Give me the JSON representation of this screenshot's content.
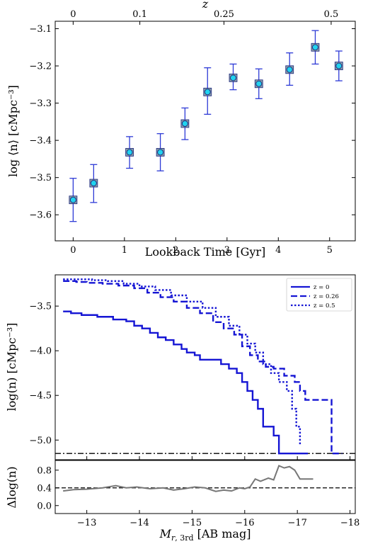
{
  "chart_data": [
    {
      "type": "scatter",
      "xlabel": "Lookback Time [Gyr]",
      "ylabel": "log ⟨n⟩ [cMpc⁻³]",
      "x2label": "z",
      "xlim": [
        -0.35,
        5.5
      ],
      "ylim": [
        -3.67,
        -3.08
      ],
      "xticks": [
        0,
        1,
        2,
        3,
        4,
        5
      ],
      "yticks": [
        -3.6,
        -3.5,
        -3.4,
        -3.3,
        -3.2,
        -3.1
      ],
      "ytick_labels": [
        "−3.6",
        "−3.5",
        "−3.4",
        "−3.3",
        "−3.2",
        "−3.1"
      ],
      "top_ticks": [
        {
          "label": "0",
          "lookback": 0.0
        },
        {
          "label": "0.1",
          "lookback": 1.3
        },
        {
          "label": "0.25",
          "lookback": 2.94
        },
        {
          "label": "0.5",
          "lookback": 5.03
        }
      ],
      "x": [
        0.0,
        0.4,
        1.1,
        1.7,
        2.18,
        2.62,
        3.12,
        3.62,
        4.22,
        4.72,
        5.18
      ],
      "y": [
        -3.56,
        -3.515,
        -3.432,
        -3.432,
        -3.355,
        -3.27,
        -3.232,
        -3.248,
        -3.21,
        -3.15,
        -3.2
      ],
      "yerr_low": [
        0.058,
        0.052,
        0.043,
        0.05,
        0.043,
        0.06,
        0.032,
        0.04,
        0.042,
        0.045,
        0.04
      ],
      "yerr_high": [
        0.058,
        0.05,
        0.042,
        0.05,
        0.042,
        0.065,
        0.037,
        0.04,
        0.045,
        0.045,
        0.04
      ],
      "grid": false,
      "colors": {
        "marker_fill": "#22d3ee",
        "marker_edge": "#1a237e",
        "errorbar": "#2d3ad6",
        "square": "#8aa0a8"
      }
    },
    {
      "type": "line",
      "xlabel": "",
      "ylabel": "log(n) [cMpc⁻³]",
      "xlim": [
        -12.4,
        -18.1
      ],
      "ylim": [
        -5.22,
        -3.15
      ],
      "yticks": [
        -5.0,
        -4.5,
        -4.0,
        -3.5
      ],
      "ytick_labels": [
        "−5.0",
        "−4.5",
        "−4.0",
        "−3.5"
      ],
      "hline": -5.15,
      "legend_placement": "top-right",
      "series": [
        {
          "name": "z = 0",
          "style": "solid",
          "x": [
            -12.55,
            -12.7,
            -12.9,
            -13.2,
            -13.5,
            -13.75,
            -13.9,
            -14.05,
            -14.2,
            -14.35,
            -14.5,
            -14.65,
            -14.8,
            -14.9,
            -15.05,
            -15.15,
            -15.3,
            -15.45,
            -15.55,
            -15.7,
            -15.85,
            -15.95,
            -16.05,
            -16.15,
            -16.25,
            -16.35,
            -16.45,
            -16.55,
            -16.65,
            -16.8,
            -17.1,
            -17.2
          ],
          "y": [
            -3.56,
            -3.58,
            -3.6,
            -3.62,
            -3.65,
            -3.67,
            -3.72,
            -3.75,
            -3.8,
            -3.85,
            -3.88,
            -3.93,
            -3.98,
            -4.02,
            -4.05,
            -4.1,
            -4.1,
            -4.1,
            -4.15,
            -4.2,
            -4.25,
            -4.35,
            -4.45,
            -4.55,
            -4.65,
            -4.85,
            -4.85,
            -4.95,
            -5.15,
            -5.15,
            -5.15,
            -5.15
          ]
        },
        {
          "name": "z = 0.26",
          "style": "dashed",
          "x": [
            -12.55,
            -12.8,
            -13.0,
            -13.3,
            -13.6,
            -13.9,
            -14.15,
            -14.4,
            -14.65,
            -14.9,
            -15.15,
            -15.4,
            -15.6,
            -15.8,
            -15.95,
            -16.1,
            -16.25,
            -16.4,
            -16.55,
            -16.75,
            -16.95,
            -17.05,
            -17.15,
            -17.3,
            -17.45,
            -17.55,
            -17.65,
            -17.85
          ],
          "y": [
            -3.22,
            -3.23,
            -3.24,
            -3.25,
            -3.27,
            -3.3,
            -3.35,
            -3.4,
            -3.45,
            -3.52,
            -3.58,
            -3.68,
            -3.75,
            -3.82,
            -3.95,
            -4.05,
            -4.12,
            -4.18,
            -4.2,
            -4.28,
            -4.35,
            -4.45,
            -4.55,
            -4.55,
            -4.55,
            -4.55,
            -5.15,
            -5.15
          ]
        },
        {
          "name": "z = 0.5",
          "style": "dotted",
          "x": [
            -12.55,
            -12.8,
            -13.1,
            -13.4,
            -13.7,
            -14.0,
            -14.3,
            -14.6,
            -14.9,
            -15.2,
            -15.45,
            -15.7,
            -15.9,
            -16.05,
            -16.2,
            -16.35,
            -16.5,
            -16.65,
            -16.8,
            -16.9,
            -16.98,
            -17.05
          ],
          "y": [
            -3.2,
            -3.2,
            -3.21,
            -3.22,
            -3.25,
            -3.28,
            -3.32,
            -3.38,
            -3.45,
            -3.52,
            -3.62,
            -3.72,
            -3.82,
            -3.92,
            -4.02,
            -4.15,
            -4.25,
            -4.35,
            -4.45,
            -4.65,
            -4.85,
            -5.05
          ]
        }
      ],
      "colors": {
        "lines": "#1515d4",
        "hline": "#000000"
      }
    },
    {
      "type": "line",
      "xlabel": "M_r,3rd [AB mag]",
      "ylabel": "Δlog(n)",
      "xlim": [
        -12.4,
        -18.1
      ],
      "ylim": [
        -0.18,
        1.02
      ],
      "xticks": [
        -13,
        -14,
        -15,
        -16,
        -17,
        -18
      ],
      "xtick_labels": [
        "−13",
        "−14",
        "−15",
        "−16",
        "−17",
        "−18"
      ],
      "yticks": [
        0.0,
        0.4,
        0.8
      ],
      "ytick_labels": [
        "0.0",
        "0.4",
        "0.8"
      ],
      "hline": 0.4,
      "series": [
        {
          "x": [
            -12.55,
            -12.75,
            -13.0,
            -13.3,
            -13.55,
            -13.75,
            -13.95,
            -14.2,
            -14.45,
            -14.65,
            -14.85,
            -15.05,
            -15.25,
            -15.45,
            -15.6,
            -15.75,
            -15.9,
            -16.0,
            -16.1,
            -16.2,
            -16.3,
            -16.45,
            -16.55,
            -16.65,
            -16.75,
            -16.85,
            -16.95,
            -17.05,
            -17.3
          ],
          "y": [
            0.33,
            0.36,
            0.37,
            0.4,
            0.45,
            0.4,
            0.42,
            0.38,
            0.4,
            0.35,
            0.38,
            0.42,
            0.4,
            0.32,
            0.35,
            0.33,
            0.4,
            0.38,
            0.42,
            0.6,
            0.55,
            0.62,
            0.58,
            0.9,
            0.85,
            0.88,
            0.8,
            0.6,
            0.6
          ]
        }
      ],
      "colors": {
        "line": "#777777",
        "hline": "#000000"
      }
    }
  ]
}
